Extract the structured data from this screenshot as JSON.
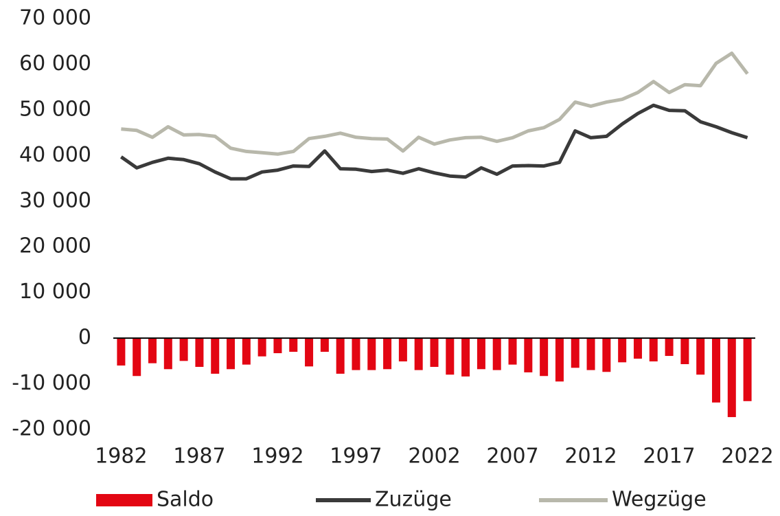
{
  "chart_data": {
    "type": "combo",
    "x": [
      1982,
      1983,
      1984,
      1985,
      1986,
      1987,
      1988,
      1989,
      1990,
      1991,
      1992,
      1993,
      1994,
      1995,
      1996,
      1997,
      1998,
      1999,
      2000,
      2001,
      2002,
      2003,
      2004,
      2005,
      2006,
      2007,
      2008,
      2009,
      2010,
      2011,
      2012,
      2013,
      2014,
      2015,
      2016,
      2017,
      2018,
      2019,
      2020,
      2021,
      2022
    ],
    "xlim": [
      1981.5,
      2022.5
    ],
    "xticks": [
      1982,
      1987,
      1992,
      1997,
      2002,
      2007,
      2012,
      2017,
      2022
    ],
    "ylim": [
      -20000,
      70000
    ],
    "yticks": [
      {
        "value": -20000,
        "label": "-20 000"
      },
      {
        "value": -10000,
        "label": "-10 000"
      },
      0,
      {
        "value": 10000,
        "label": "10 000"
      },
      {
        "value": 20000,
        "label": "20 000"
      },
      {
        "value": 30000,
        "label": "30 000"
      },
      {
        "value": 40000,
        "label": "40 000"
      },
      {
        "value": 50000,
        "label": "50 000"
      },
      {
        "value": 60000,
        "label": "60 000"
      },
      {
        "value": 70000,
        "label": "70 000"
      }
    ],
    "grid": false,
    "legend": "bottom",
    "series": [
      {
        "name": "Saldo",
        "type": "bar",
        "color": "#e30613",
        "values": [
          -6000,
          -8300,
          -5500,
          -6800,
          -5000,
          -6300,
          -7800,
          -6800,
          -5800,
          -4000,
          -3300,
          -3000,
          -6200,
          -3000,
          -7800,
          -7000,
          -7000,
          -6800,
          -5100,
          -7000,
          -6300,
          -8000,
          -8400,
          -6800,
          -7000,
          -5800,
          -7500,
          -8300,
          -9500,
          -6500,
          -7000,
          -7400,
          -5300,
          -4500,
          -5100,
          -3900,
          -5700,
          -8000,
          -14100,
          -17300,
          -13800
        ]
      },
      {
        "name": "Zuzüge",
        "type": "line",
        "color": "#3a3a3a",
        "values": [
          39700,
          37300,
          38500,
          39400,
          39100,
          38200,
          36400,
          34900,
          34900,
          36400,
          36800,
          37700,
          37600,
          41000,
          37100,
          37000,
          36500,
          36800,
          36100,
          37100,
          36200,
          35500,
          35300,
          37300,
          35900,
          37700,
          37800,
          37700,
          38500,
          45400,
          43900,
          44200,
          46900,
          49200,
          51000,
          49900,
          49800,
          47400,
          46300,
          45000,
          43900
        ]
      },
      {
        "name": "Wegzüge",
        "type": "line",
        "color": "#b8b8ab",
        "values": [
          45800,
          45500,
          44000,
          46300,
          44500,
          44600,
          44200,
          41600,
          40900,
          40600,
          40300,
          40900,
          43700,
          44200,
          44900,
          44000,
          43700,
          43600,
          41000,
          44000,
          42500,
          43400,
          43900,
          44000,
          43100,
          43900,
          45400,
          46100,
          47900,
          51700,
          50800,
          51700,
          52300,
          53800,
          56200,
          53800,
          55500,
          55300,
          60200,
          62400,
          57900
        ]
      }
    ]
  }
}
